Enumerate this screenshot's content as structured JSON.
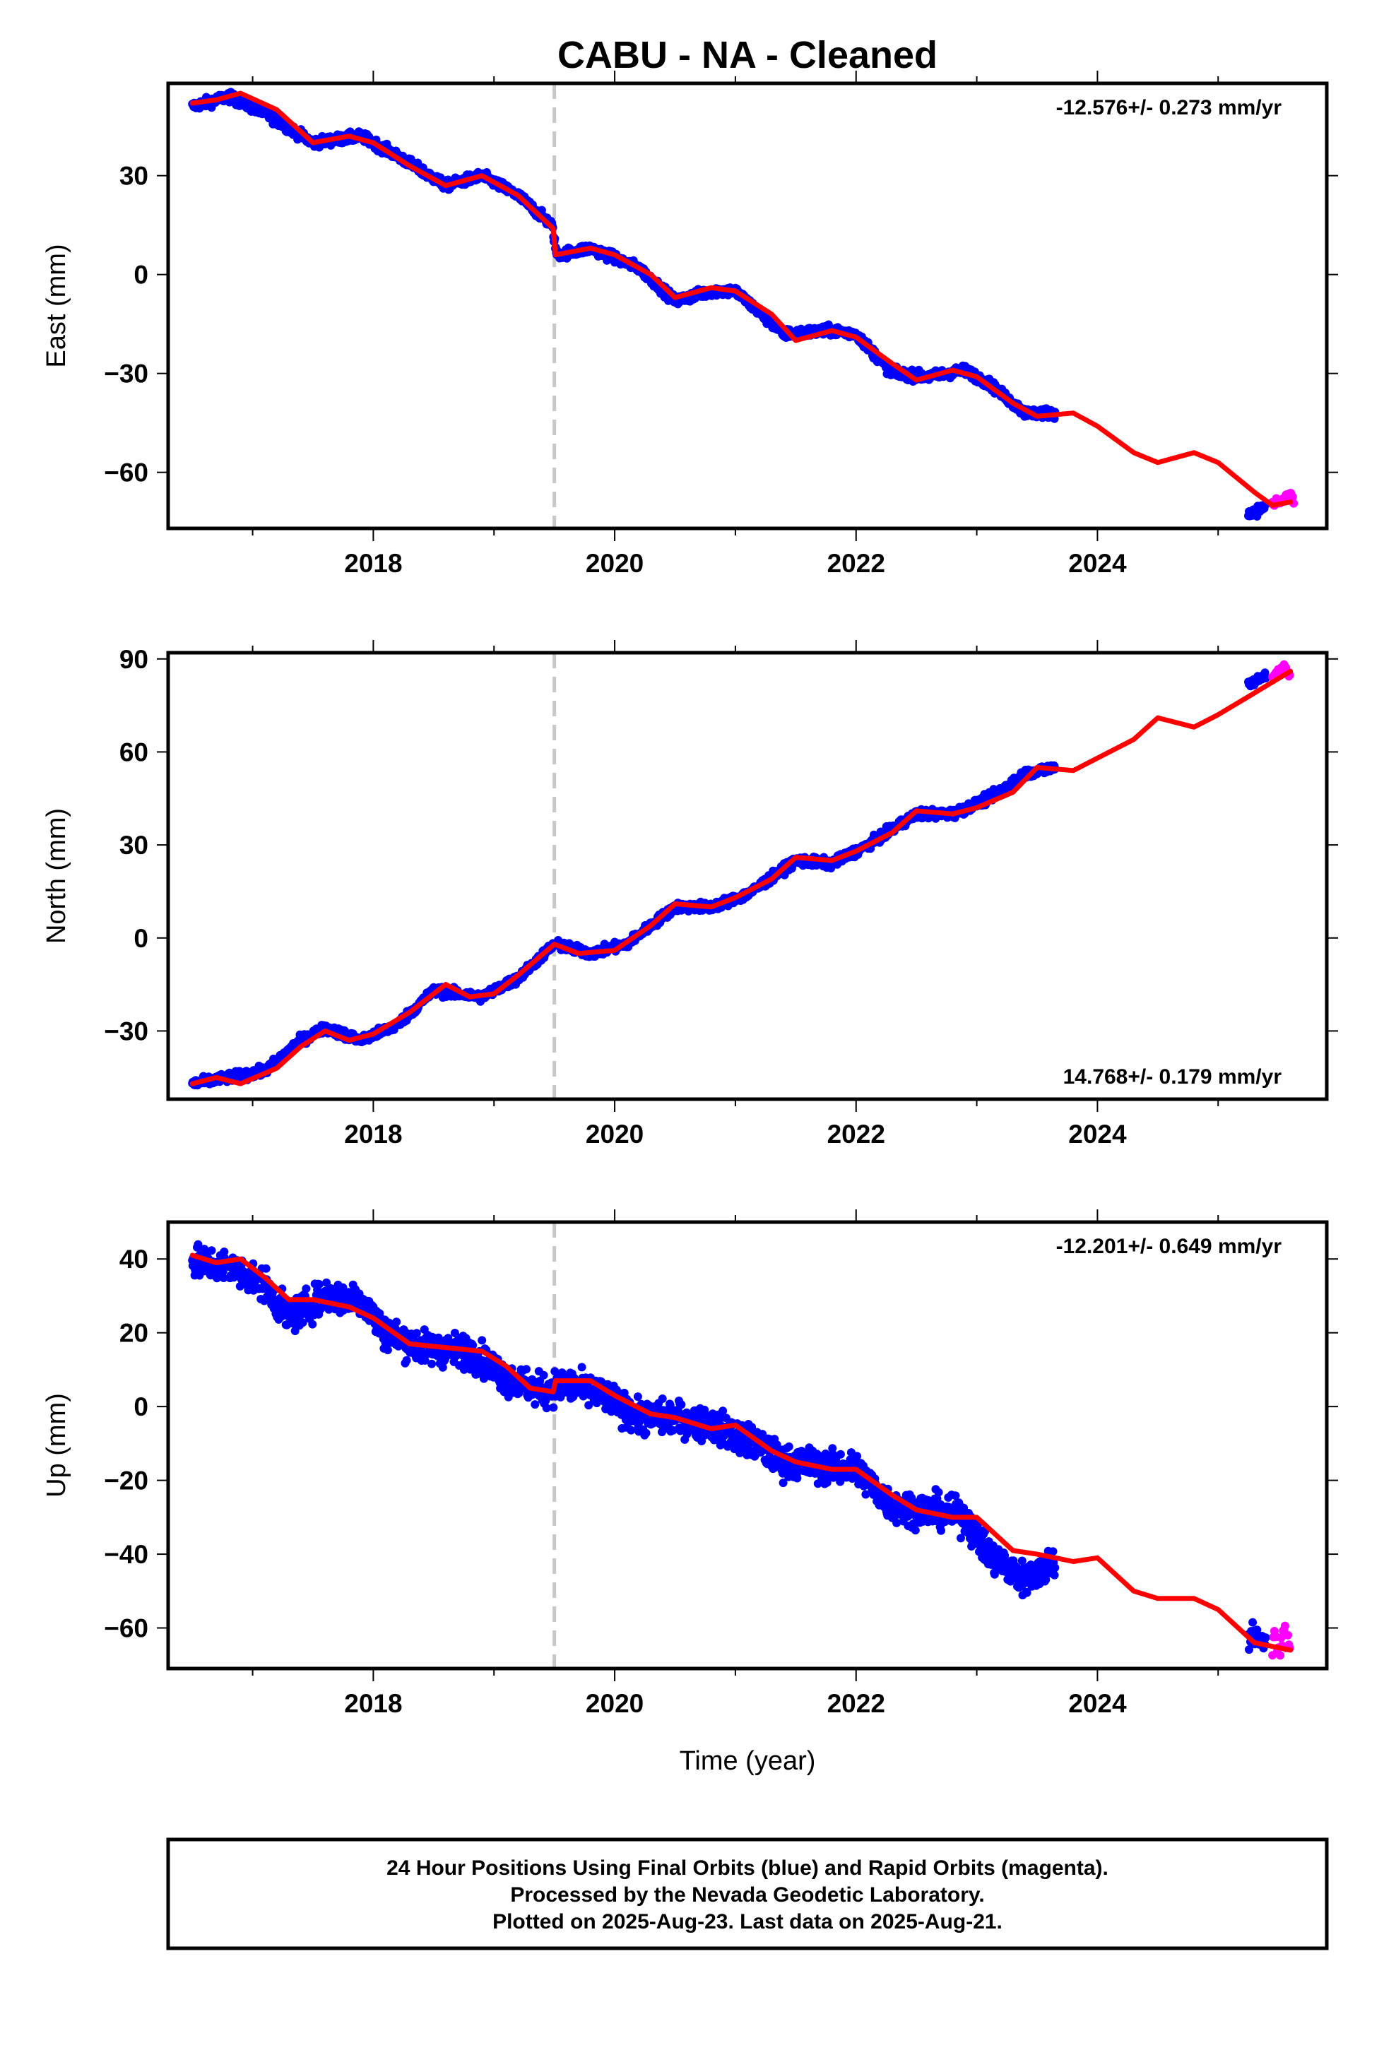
{
  "title": "CABU  - NA - Cleaned",
  "xlabel": "Time (year)",
  "colors": {
    "final": "#0000ff",
    "rapid": "#ff00ff",
    "model": "#ff0000",
    "event_line": "#c8c8c8",
    "frame": "#000000"
  },
  "footer": {
    "line1": "24 Hour Positions Using Final Orbits (blue) and Rapid Orbits (magenta).",
    "line2": "Processed by the Nevada Geodetic Laboratory.",
    "line3": "Plotted on 2025-Aug-23. Last data on 2025-Aug-21."
  },
  "chart_data": [
    {
      "type": "scatter",
      "component": "East",
      "ylabel": "East (mm)",
      "rate_label": "-12.576+/- 0.273 mm/yr",
      "xlim": [
        2016.3,
        2025.9
      ],
      "ylim": [
        -77,
        58
      ],
      "yticks": [
        30,
        0,
        -30,
        -60
      ],
      "xticks": [
        2018,
        2020,
        2022,
        2024
      ],
      "event_x": 2019.5,
      "final_data": {
        "x": [
          2016.5,
          2016.8,
          2017.1,
          2017.5,
          2017.9,
          2018.2,
          2018.6,
          2018.9,
          2019.2,
          2019.48,
          2019.52,
          2019.8,
          2020.2,
          2020.5,
          2020.8,
          2021.0,
          2021.4,
          2021.8,
          2022.0,
          2022.3,
          2022.6,
          2022.9,
          2023.1,
          2023.4,
          2023.65
        ],
        "y": [
          51,
          54,
          49,
          40,
          42,
          36,
          27,
          30,
          24,
          15,
          6,
          8,
          2,
          -8,
          -5,
          -5,
          -18,
          -17,
          -18,
          -30,
          -31,
          -29,
          -33,
          -42,
          -42
        ]
      },
      "rapid_data": {
        "x": [
          2025.45,
          2025.5,
          2025.55,
          2025.6,
          2025.63
        ],
        "y": [
          -70,
          -69,
          -68,
          -66,
          -70
        ]
      },
      "final_segment2": {
        "x": [
          2025.25,
          2025.3,
          2025.35,
          2025.4
        ],
        "y": [
          -73,
          -72,
          -71,
          -70
        ]
      },
      "model": {
        "x": [
          2016.5,
          2016.7,
          2016.9,
          2017.2,
          2017.5,
          2017.8,
          2018.0,
          2018.3,
          2018.6,
          2018.9,
          2019.2,
          2019.49,
          2019.51,
          2019.8,
          2020.0,
          2020.3,
          2020.5,
          2020.8,
          2021.0,
          2021.3,
          2021.5,
          2021.8,
          2022.0,
          2022.3,
          2022.5,
          2022.8,
          2023.0,
          2023.3,
          2023.5,
          2023.8,
          2024.0,
          2024.3,
          2024.5,
          2024.8,
          2025.0,
          2025.3,
          2025.45,
          2025.6
        ],
        "y": [
          52,
          53,
          55,
          50,
          40,
          42,
          40,
          33,
          27,
          30,
          24,
          14,
          6,
          8,
          6,
          0,
          -7,
          -4,
          -5,
          -12,
          -20,
          -17,
          -19,
          -27,
          -32,
          -29,
          -31,
          -39,
          -43,
          -42,
          -46,
          -54,
          -57,
          -54,
          -57,
          -66,
          -70,
          -69
        ]
      }
    },
    {
      "type": "scatter",
      "component": "North",
      "ylabel": "North (mm)",
      "rate_label": "14.768+/- 0.179 mm/yr",
      "xlim": [
        2016.3,
        2025.9
      ],
      "ylim": [
        -52,
        92
      ],
      "yticks": [
        90,
        60,
        30,
        0,
        -30
      ],
      "xticks": [
        2018,
        2020,
        2022,
        2024
      ],
      "event_x": 2019.5,
      "final_data": {
        "x": [
          2016.5,
          2016.8,
          2017.1,
          2017.4,
          2017.6,
          2017.9,
          2018.2,
          2018.5,
          2018.9,
          2019.2,
          2019.5,
          2019.8,
          2020.1,
          2020.5,
          2020.8,
          2021.1,
          2021.5,
          2021.8,
          2022.1,
          2022.5,
          2022.8,
          2023.1,
          2023.4,
          2023.65
        ],
        "y": [
          -47,
          -45,
          -43,
          -33,
          -29,
          -33,
          -28,
          -17,
          -19,
          -13,
          -2,
          -5,
          -2,
          10,
          10,
          14,
          25,
          24,
          30,
          40,
          40,
          45,
          53,
          55
        ]
      },
      "rapid_data": {
        "x": [
          2025.45,
          2025.5,
          2025.55,
          2025.6
        ],
        "y": [
          84,
          86,
          88,
          85
        ]
      },
      "final_segment2": {
        "x": [
          2025.25,
          2025.3,
          2025.35,
          2025.4
        ],
        "y": [
          82,
          83,
          84,
          85
        ]
      },
      "model": {
        "x": [
          2016.5,
          2016.7,
          2016.9,
          2017.2,
          2017.4,
          2017.6,
          2017.8,
          2018.0,
          2018.3,
          2018.6,
          2018.8,
          2019.0,
          2019.2,
          2019.5,
          2019.7,
          2020.0,
          2020.3,
          2020.5,
          2020.8,
          2021.0,
          2021.3,
          2021.5,
          2021.8,
          2022.0,
          2022.3,
          2022.5,
          2022.8,
          2023.0,
          2023.3,
          2023.5,
          2023.8,
          2024.0,
          2024.3,
          2024.5,
          2024.8,
          2025.0,
          2025.3,
          2025.6
        ],
        "y": [
          -47,
          -45,
          -47,
          -42,
          -35,
          -30,
          -33,
          -31,
          -24,
          -15,
          -19,
          -18,
          -12,
          -2,
          -5,
          -4,
          4,
          11,
          10,
          13,
          19,
          26,
          25,
          28,
          34,
          41,
          40,
          42,
          47,
          55,
          54,
          58,
          64,
          71,
          68,
          72,
          79,
          86
        ]
      }
    },
    {
      "type": "scatter",
      "component": "Up",
      "ylabel": "Up (mm)",
      "rate_label": "-12.201+/- 0.649 mm/yr",
      "xlim": [
        2016.3,
        2025.9
      ],
      "ylim": [
        -71,
        50
      ],
      "yticks": [
        40,
        20,
        0,
        -20,
        -40,
        -60
      ],
      "xticks": [
        2018,
        2020,
        2022,
        2024
      ],
      "event_x": 2019.5,
      "final_data": {
        "x": [
          2016.5,
          2016.8,
          2017.1,
          2017.3,
          2017.6,
          2017.9,
          2018.1,
          2018.4,
          2018.8,
          2019.1,
          2019.4,
          2019.6,
          2019.9,
          2020.2,
          2020.5,
          2020.8,
          2021.1,
          2021.4,
          2021.7,
          2022.0,
          2022.3,
          2022.6,
          2022.9,
          2023.1,
          2023.4,
          2023.65
        ],
        "y": [
          39,
          38,
          33,
          24,
          30,
          29,
          20,
          16,
          15,
          8,
          4,
          6,
          3,
          -3,
          -3,
          -5,
          -9,
          -15,
          -16,
          -17,
          -27,
          -28,
          -30,
          -40,
          -47,
          -42
        ]
      },
      "rapid_data": {
        "x": [
          2025.45,
          2025.5,
          2025.55,
          2025.6
        ],
        "y": [
          -62,
          -66,
          -60,
          -65
        ]
      },
      "final_segment2": {
        "x": [
          2025.25,
          2025.3,
          2025.35,
          2025.4
        ],
        "y": [
          -63,
          -61,
          -65,
          -62
        ]
      },
      "model": {
        "x": [
          2016.5,
          2016.7,
          2016.9,
          2017.1,
          2017.3,
          2017.5,
          2017.8,
          2018.0,
          2018.3,
          2018.6,
          2018.9,
          2019.1,
          2019.3,
          2019.49,
          2019.51,
          2019.8,
          2020.0,
          2020.3,
          2020.5,
          2020.8,
          2021.0,
          2021.3,
          2021.5,
          2021.8,
          2022.0,
          2022.3,
          2022.5,
          2022.8,
          2023.0,
          2023.3,
          2023.5,
          2023.8,
          2024.0,
          2024.3,
          2024.5,
          2024.8,
          2025.0,
          2025.3,
          2025.6
        ],
        "y": [
          41,
          39,
          40,
          35,
          29,
          29,
          27,
          24,
          17,
          16,
          15,
          11,
          5,
          4,
          7,
          7,
          3,
          -2,
          -3,
          -6,
          -5,
          -12,
          -15,
          -17,
          -17,
          -24,
          -28,
          -30,
          -30,
          -39,
          -40,
          -42,
          -41,
          -50,
          -52,
          -52,
          -55,
          -64,
          -66
        ]
      }
    }
  ]
}
